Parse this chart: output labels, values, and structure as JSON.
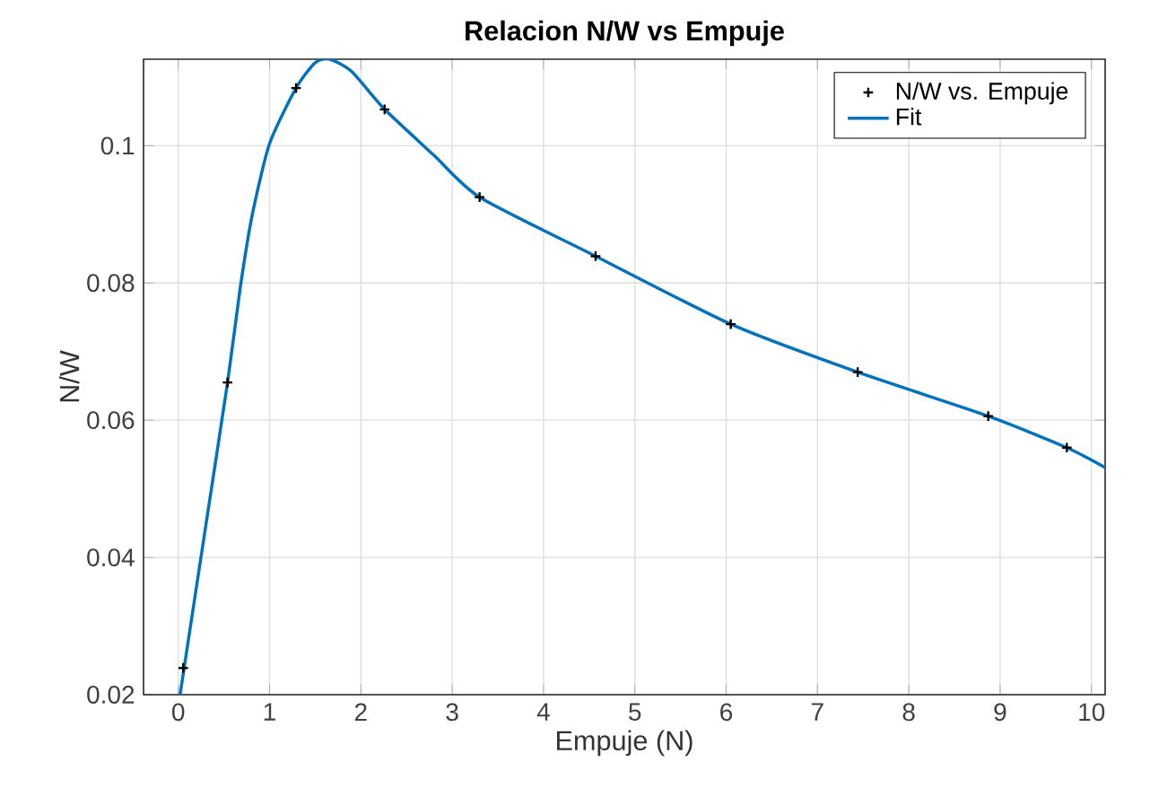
{
  "chart_data": {
    "type": "scatter",
    "title": "Relacion N/W vs Empuje",
    "xlabel": "Empuje (N)",
    "ylabel": "N/W",
    "xlim": [
      -0.38,
      10.15
    ],
    "ylim": [
      0.02,
      0.1126
    ],
    "xticks": [
      0,
      1,
      2,
      3,
      4,
      5,
      6,
      7,
      8,
      9,
      10
    ],
    "yticks": [
      0.02,
      0.04,
      0.06,
      0.08,
      0.1
    ],
    "grid": true,
    "legend": "top right",
    "series": [
      {
        "name": "N/W vs. Empuje",
        "color": "#000000",
        "marker": "cross",
        "x": [
          0.055,
          0.54,
          1.29,
          2.26,
          3.3,
          4.57,
          6.05,
          7.44,
          8.87,
          9.73
        ],
        "values": [
          0.0239,
          0.0655,
          0.1084,
          0.1053,
          0.0925,
          0.0839,
          0.074,
          0.067,
          0.0606,
          0.056
        ]
      },
      {
        "name": "Fit",
        "type": "line",
        "color": "#0072bd",
        "marker": "none",
        "x": [
          0.02,
          0.3,
          0.54,
          0.68,
          0.81,
          1.0,
          1.29,
          1.5,
          1.66,
          1.9,
          2.26,
          2.8,
          3.3,
          4.57,
          6.05,
          7.44,
          8.87,
          9.73,
          10.15
        ],
        "values": [
          0.02,
          0.0445,
          0.0655,
          0.0794,
          0.0899,
          0.1003,
          0.1084,
          0.1121,
          0.1126,
          0.1108,
          0.1053,
          0.0986,
          0.0925,
          0.0839,
          0.074,
          0.067,
          0.0606,
          0.056,
          0.0531
        ]
      }
    ]
  }
}
